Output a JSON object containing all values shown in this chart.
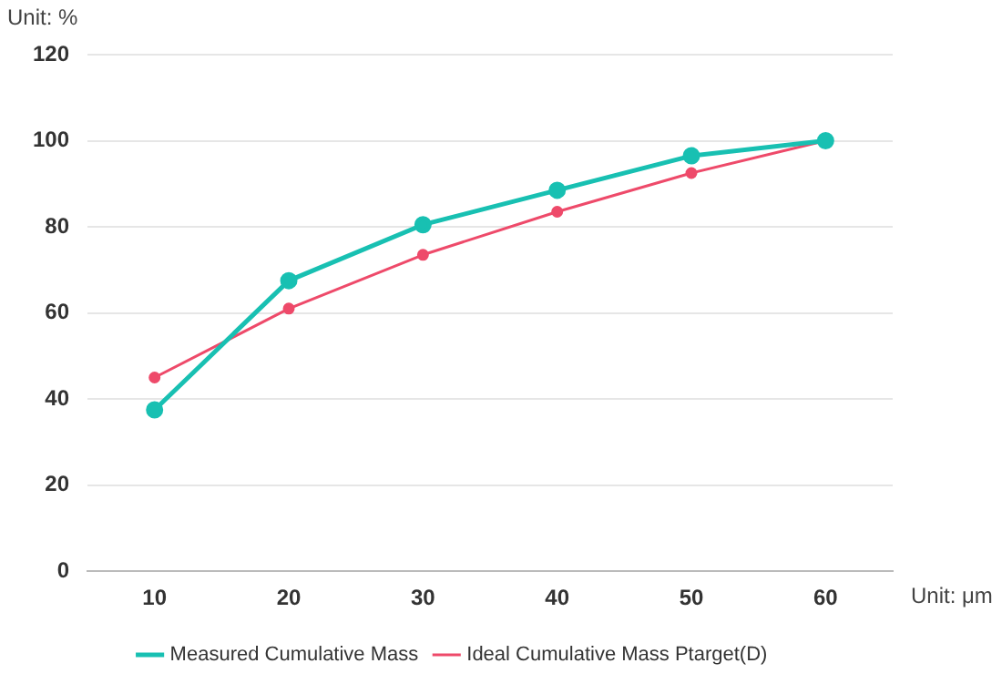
{
  "chart_data": {
    "type": "line",
    "ylabel": "Unit: %",
    "xlabel": "Unit: μm",
    "categories": [
      "10",
      "20",
      "30",
      "40",
      "50",
      "60"
    ],
    "series": [
      {
        "name": "Ideal Cumulative Mass Ptarget(D)",
        "color": "#ee4a6a",
        "values": [
          45,
          61,
          73.5,
          83.5,
          92.5,
          100
        ]
      },
      {
        "name": "Measured Cumulative Mass",
        "color": "#18c0b2",
        "values": [
          37.5,
          67.5,
          80.5,
          88.5,
          96.5,
          100
        ]
      }
    ],
    "ylim": [
      0,
      120
    ],
    "yticks": [
      0,
      20,
      40,
      60,
      80,
      100,
      120
    ],
    "grid": "y",
    "legend": "bottom",
    "marker": "circle",
    "line_style": "solid"
  }
}
